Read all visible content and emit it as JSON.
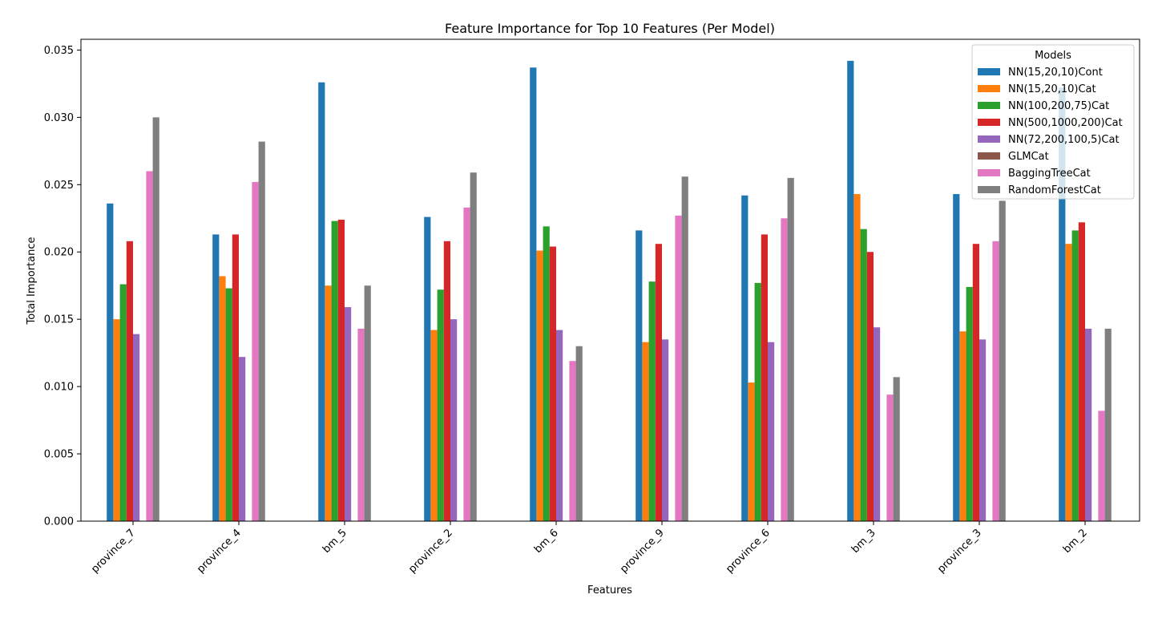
{
  "chart_data": {
    "type": "bar",
    "title": "Feature Importance for Top 10 Features (Per Model)",
    "xlabel": "Features",
    "ylabel": "Total Importance",
    "ylim": [
      0,
      0.0358
    ],
    "yticks": [
      "0.000",
      "0.005",
      "0.010",
      "0.015",
      "0.020",
      "0.025",
      "0.030",
      "0.035"
    ],
    "grid": false,
    "legend_title": "Models",
    "legend_position": "top-right",
    "categories": [
      "province_7",
      "province_4",
      "bm_5",
      "province_2",
      "bm_6",
      "province_9",
      "province_6",
      "bm_3",
      "province_3",
      "bm_2"
    ],
    "series": [
      {
        "name": "NN(15,20,10)Cont",
        "color": "#1f77b4",
        "values": [
          0.0236,
          0.0213,
          0.0326,
          0.0226,
          0.0337,
          0.0216,
          0.0242,
          0.0342,
          0.0243,
          0.0322
        ]
      },
      {
        "name": "NN(15,20,10)Cat",
        "color": "#ff7f0e",
        "values": [
          0.015,
          0.0182,
          0.0175,
          0.0142,
          0.0201,
          0.0133,
          0.0103,
          0.0243,
          0.0141,
          0.0206
        ]
      },
      {
        "name": "NN(100,200,75)Cat",
        "color": "#2ca02c",
        "values": [
          0.0176,
          0.0173,
          0.0223,
          0.0172,
          0.0219,
          0.0178,
          0.0177,
          0.0217,
          0.0174,
          0.0216
        ]
      },
      {
        "name": "NN(500,1000,200)Cat",
        "color": "#d62728",
        "values": [
          0.0208,
          0.0213,
          0.0224,
          0.0208,
          0.0204,
          0.0206,
          0.0213,
          0.02,
          0.0206,
          0.0222
        ]
      },
      {
        "name": "NN(72,200,100,5)Cat",
        "color": "#9467bd",
        "values": [
          0.0139,
          0.0122,
          0.0159,
          0.015,
          0.0142,
          0.0135,
          0.0133,
          0.0144,
          0.0135,
          0.0143
        ]
      },
      {
        "name": "GLMCat",
        "color": "#8c564b",
        "values": [
          0,
          0,
          0,
          0,
          0,
          0,
          0,
          0,
          0,
          0
        ]
      },
      {
        "name": "BaggingTreeCat",
        "color": "#e377c2",
        "values": [
          0.026,
          0.0252,
          0.0143,
          0.0233,
          0.0119,
          0.0227,
          0.0225,
          0.0094,
          0.0208,
          0.0082
        ]
      },
      {
        "name": "RandomForestCat",
        "color": "#7f7f7f",
        "values": [
          0.03,
          0.0282,
          0.0175,
          0.0259,
          0.013,
          0.0256,
          0.0255,
          0.0107,
          0.0238,
          0.0143
        ]
      }
    ]
  }
}
